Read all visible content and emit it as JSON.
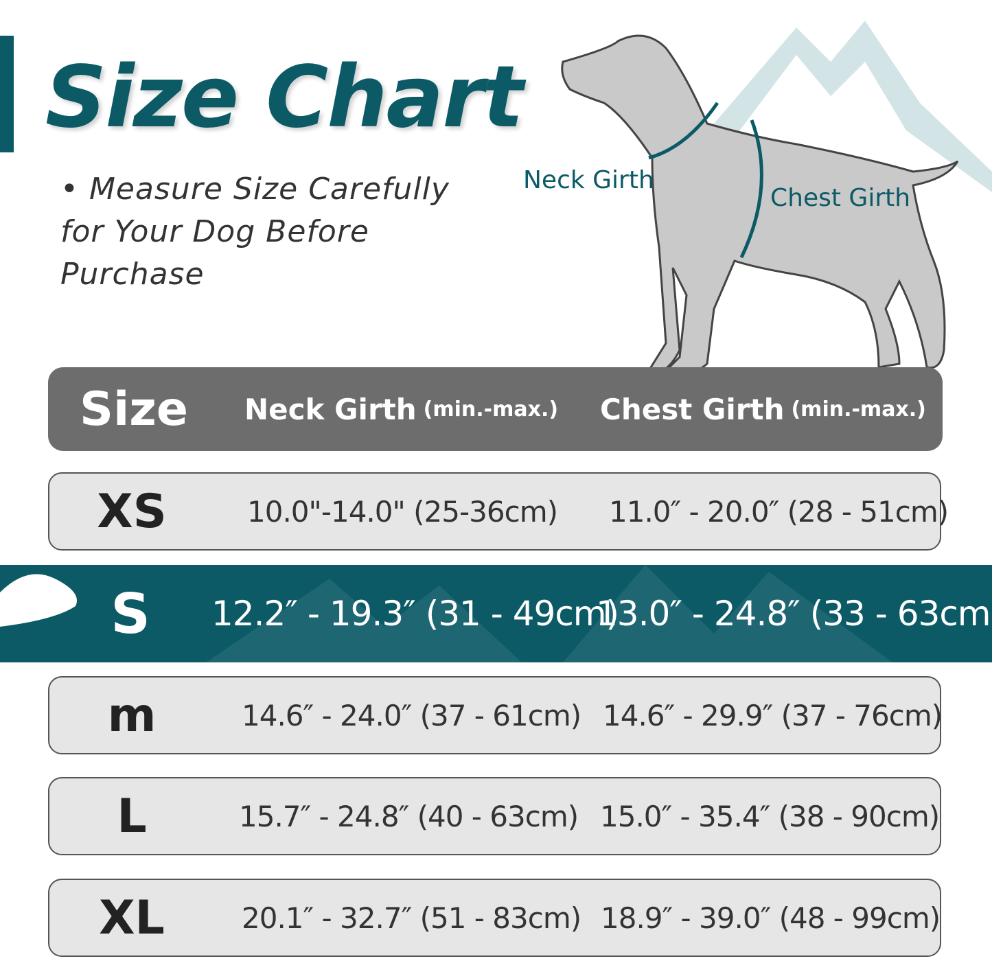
{
  "title": "Size Chart",
  "note": "• Measure Size Carefully for Your Dog Before Purchase",
  "diagram": {
    "neck_label": "Neck Girth",
    "chest_label": "Chest Girth"
  },
  "colors": {
    "accent": "#0b5a66",
    "header": "#6d6d6d",
    "row": "#e6e6e6",
    "mountain": "#c8dde0"
  },
  "table": {
    "headers": {
      "size": "Size",
      "neck": "Neck Girth",
      "neck_sub": "(min.-max.)",
      "chest": "Chest Girth",
      "chest_sub": "(min.-max.)"
    },
    "rows": [
      {
        "size": "XS",
        "neck": "10.0\"-14.0\" (25-36cm)",
        "chest": "11.0″ - 20.0″ (28 - 51cm)"
      },
      {
        "size": "S",
        "neck": "12.2″ - 19.3″ (31 - 49cm)",
        "chest": "13.0″ - 24.8″ (33 - 63cm)",
        "highlighted": true
      },
      {
        "size": "M",
        "neck": "14.6″ - 24.0″ (37 - 61cm)",
        "chest": "14.6″ - 29.9″ (37 - 76cm)"
      },
      {
        "size": "L",
        "neck": "15.7″ - 24.8″ (40 - 63cm)",
        "chest": "15.0″ - 35.4″ (38 - 90cm)"
      },
      {
        "size": "XL",
        "neck": "20.1″ - 32.7″ (51 - 83cm)",
        "chest": "18.9″ - 39.0″ (48 - 99cm)"
      }
    ]
  }
}
